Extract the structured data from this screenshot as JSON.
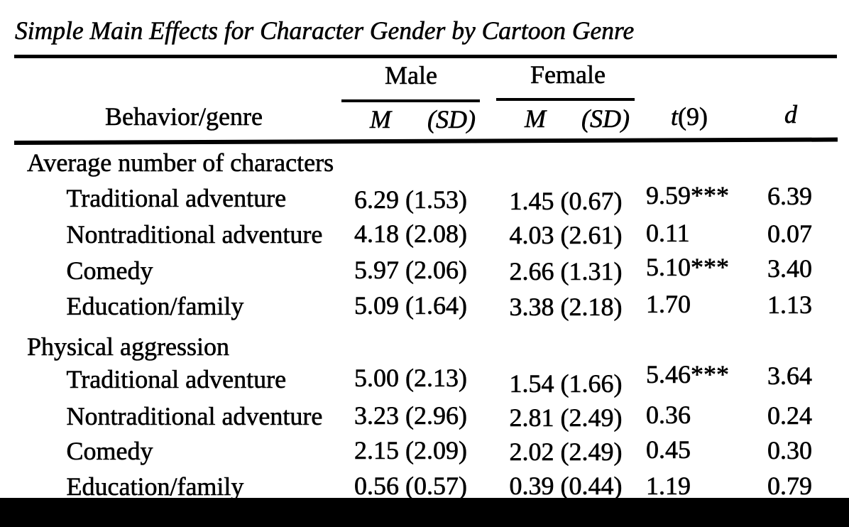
{
  "title": "Simple Main Effects for Character Gender by Cartoon Genre",
  "colors": {
    "ink": "#000000",
    "paper": "#ffffff",
    "bottom_bar": "#000000"
  },
  "table": {
    "column_groups": [
      {
        "label": "Male"
      },
      {
        "label": "Female"
      }
    ],
    "column_headers": {
      "behavior": "Behavior/genre",
      "male_m": "M",
      "male_sd": "(SD)",
      "female_m": "M",
      "female_sd": "(SD)",
      "t": "t(9)",
      "d": "d"
    },
    "groups": [
      {
        "label": "Average number of characters",
        "rows": [
          {
            "label": "Traditional adventure",
            "male_m": "6.29",
            "male_sd": "(1.53)",
            "female_m": "1.45",
            "female_sd": "(0.67)",
            "t": "9.59***",
            "d": "6.39"
          },
          {
            "label": "Nontraditional adventure",
            "male_m": "4.18",
            "male_sd": "(2.08)",
            "female_m": "4.03",
            "female_sd": "(2.61)",
            "t": "0.11",
            "d": "0.07"
          },
          {
            "label": "Comedy",
            "male_m": "5.97",
            "male_sd": "(2.06)",
            "female_m": "2.66",
            "female_sd": "(1.31)",
            "t": "5.10***",
            "d": "3.40"
          },
          {
            "label": "Education/family",
            "male_m": "5.09",
            "male_sd": "(1.64)",
            "female_m": "3.38",
            "female_sd": "(2.18)",
            "t": "1.70",
            "d": "1.13"
          }
        ]
      },
      {
        "label": "Physical aggression",
        "rows": [
          {
            "label": "Traditional adventure",
            "male_m": "5.00",
            "male_sd": "(2.13)",
            "female_m": "1.54",
            "female_sd": "(1.66)",
            "t": "5.46***",
            "d": "3.64"
          },
          {
            "label": "Nontraditional adventure",
            "male_m": "3.23",
            "male_sd": "(2.96)",
            "female_m": "2.81",
            "female_sd": "(2.49)",
            "t": "0.36",
            "d": "0.24"
          },
          {
            "label": "Comedy",
            "male_m": "2.15",
            "male_sd": "(2.09)",
            "female_m": "2.02",
            "female_sd": "(2.49)",
            "t": "0.45",
            "d": "0.30"
          },
          {
            "label": "Education/family",
            "male_m": "0.56",
            "male_sd": "(0.57)",
            "female_m": "0.39",
            "female_sd": "(0.44)",
            "t": "1.19",
            "d": "0.79"
          }
        ]
      }
    ]
  }
}
